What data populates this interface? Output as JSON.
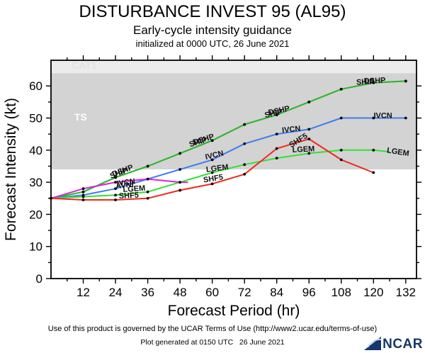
{
  "header": {
    "title": "DISTURBANCE INVEST 95 (AL95)",
    "subtitle": "Early-cycle intensity guidance",
    "init_line": "initialized at 0000 UTC, 26 June 2021"
  },
  "chart_data": {
    "type": "line",
    "title": "DISTURBANCE INVEST 95 (AL95)",
    "xlabel": "Forecast Period (hr)",
    "ylabel": "Forecast Intensity (kt)",
    "grid": false,
    "legend": "labels drawn along lines",
    "x_axis": {
      "min": 0,
      "max": 136,
      "tick_start": 12,
      "tick_end": 132,
      "major_step": 12,
      "minor_step": 6
    },
    "y_axis": {
      "min": 0,
      "max": 68,
      "tick_start": 0,
      "tick_end": 60,
      "major_step": 10,
      "minor_step": 5
    },
    "bands": [
      {
        "name": "TS",
        "from": 34,
        "to": 64,
        "color": "#d3d3d3",
        "label": "TS",
        "label_hr": 8.7,
        "label_kt": 50,
        "label_color": "#ffffff"
      },
      {
        "name": "CAT1",
        "from": 64,
        "to": 68,
        "color": "#ececec",
        "label": "CAT1",
        "label_hr": 7.7,
        "label_kt": 66.2,
        "label_color": "#e2e2e2"
      }
    ],
    "series": [
      {
        "name": "SHIP",
        "color": "#2eb82e",
        "hours": [
          0,
          12,
          24,
          36,
          48,
          60,
          72,
          84,
          96,
          108,
          120,
          132
        ],
        "values": [
          25,
          27,
          31.5,
          35,
          39,
          43,
          48,
          51,
          55,
          59,
          61,
          61.5
        ]
      },
      {
        "name": "DSHP",
        "color": "#2eb82e",
        "hours": [
          0,
          12,
          24,
          36,
          48,
          60,
          72,
          84,
          96,
          108,
          120,
          132
        ],
        "values": [
          25,
          27,
          31.5,
          35,
          39,
          43,
          48,
          51,
          55,
          59,
          61,
          61.5
        ]
      },
      {
        "name": "IVCN",
        "color": "#3d7df0",
        "hours": [
          0,
          12,
          24,
          36,
          48,
          60,
          72,
          84,
          96,
          108,
          120,
          132
        ],
        "values": [
          25,
          26,
          28,
          31,
          34,
          37,
          42,
          45,
          46.5,
          50,
          50,
          50
        ]
      },
      {
        "name": "LGEM",
        "color": "#33e033",
        "hours": [
          0,
          12,
          24,
          36,
          48,
          60,
          72,
          84,
          96,
          108,
          120,
          126
        ],
        "values": [
          25,
          25.5,
          26,
          27,
          30,
          33,
          35.5,
          37.5,
          39,
          40,
          40,
          39.5
        ]
      },
      {
        "name": "AVNI",
        "color": "#dd22dd",
        "hours": [
          0,
          12,
          24,
          36,
          48,
          51
        ],
        "values": [
          25,
          28,
          30,
          31,
          30,
          30
        ]
      },
      {
        "name": "SHF5",
        "color": "#ee2a1e",
        "hours": [
          0,
          12,
          24,
          36,
          48,
          60,
          72,
          84,
          96,
          108,
          120
        ],
        "values": [
          25,
          24.5,
          24.5,
          25,
          27.5,
          29.5,
          32.5,
          40.5,
          43.5,
          37,
          33
        ]
      }
    ],
    "line_labels": [
      {
        "text": "SHIP",
        "hr": 25.5,
        "kt": 32.1,
        "rot": -20
      },
      {
        "text": "DSHP",
        "hr": 27,
        "kt": 32.9,
        "rot": -20
      },
      {
        "text": "SHIP",
        "hr": 55,
        "kt": 41.8,
        "rot": -17
      },
      {
        "text": "DSHP",
        "hr": 57,
        "kt": 42.6,
        "rot": -17
      },
      {
        "text": "SHIP",
        "hr": 83,
        "kt": 50.7,
        "rot": -12
      },
      {
        "text": "DSHP",
        "hr": 85,
        "kt": 51.6,
        "rot": -12
      },
      {
        "text": "SHIP",
        "hr": 117,
        "kt": 60.5,
        "rot": -2
      },
      {
        "text": "DSHP",
        "hr": 120.5,
        "kt": 60.9,
        "rot": -2
      },
      {
        "text": "IVCN",
        "hr": 28,
        "kt": 29.2,
        "rot": -8
      },
      {
        "text": "IVCN",
        "hr": 61,
        "kt": 37.7,
        "rot": -13
      },
      {
        "text": "IVCN",
        "hr": 89.5,
        "kt": 45.7,
        "rot": -6
      },
      {
        "text": "IVCN",
        "hr": 123.5,
        "kt": 50,
        "rot": 0
      },
      {
        "text": "AVNI",
        "hr": 27.5,
        "kt": 28.3,
        "rot": -5
      },
      {
        "text": "LGEM",
        "hr": 31,
        "kt": 27.2,
        "rot": -4
      },
      {
        "text": "LGEM",
        "hr": 62,
        "kt": 33.6,
        "rot": -7
      },
      {
        "text": "LGEM",
        "hr": 94,
        "kt": 39.5,
        "rot": -3
      },
      {
        "text": "LGEM",
        "hr": 129,
        "kt": 38.7,
        "rot": 9
      },
      {
        "text": "SHF5",
        "hr": 29,
        "kt": 25.1,
        "rot": -3
      },
      {
        "text": "SHF5",
        "hr": 60.5,
        "kt": 30.4,
        "rot": -9
      },
      {
        "text": "SHF5",
        "hr": 92.5,
        "kt": 42.4,
        "rot": -32
      }
    ]
  },
  "footer": {
    "terms": "Use of this product is governed by the UCAR Terms of Use (http://www2.ucar.edu/terms-of-use)",
    "generated": "Plot generated at 0150 UTC   26 June 2021",
    "logo_text": "NCAR"
  }
}
